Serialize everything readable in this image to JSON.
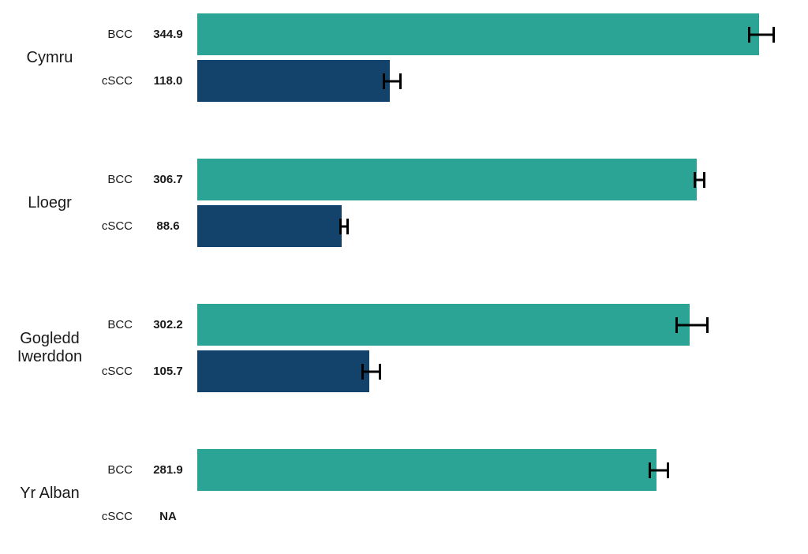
{
  "chart_data": {
    "type": "bar",
    "orientation": "horizontal",
    "title": "",
    "xlabel": "",
    "ylabel": "",
    "x_max": 370,
    "grid": false,
    "legend": "none",
    "na_text": "NA",
    "error_bar_color": "#000000",
    "series_colors": {
      "BCC": "#2BA496",
      "cSCC": "#13436B"
    },
    "groups": [
      {
        "region": "Cymru",
        "bars": [
          {
            "series": "BCC",
            "value": 344.9,
            "label": "344.9",
            "error_low": 338.0,
            "error_high": 351.7
          },
          {
            "series": "cSCC",
            "value": 118.0,
            "label": "118.0",
            "error_low": 114.0,
            "error_high": 122.5
          }
        ]
      },
      {
        "region": "Lloegr",
        "bars": [
          {
            "series": "BCC",
            "value": 306.7,
            "label": "306.7",
            "error_low": 304.4,
            "error_high": 309.0
          },
          {
            "series": "cSCC",
            "value": 88.6,
            "label": "88.6",
            "error_low": 87.1,
            "error_high": 90.1
          }
        ]
      },
      {
        "region": "Gogledd Iwerddon",
        "bars": [
          {
            "series": "BCC",
            "value": 302.2,
            "label": "302.2",
            "error_low": 293.3,
            "error_high": 311.0
          },
          {
            "series": "cSCC",
            "value": 105.7,
            "label": "105.7",
            "error_low": 100.5,
            "error_high": 110.0
          }
        ]
      },
      {
        "region": "Yr Alban",
        "bars": [
          {
            "series": "BCC",
            "value": 281.9,
            "label": "281.9",
            "error_low": 277.2,
            "error_high": 286.5
          },
          {
            "series": "cSCC",
            "value": null,
            "label": "NA",
            "error_low": null,
            "error_high": null
          }
        ]
      }
    ]
  }
}
